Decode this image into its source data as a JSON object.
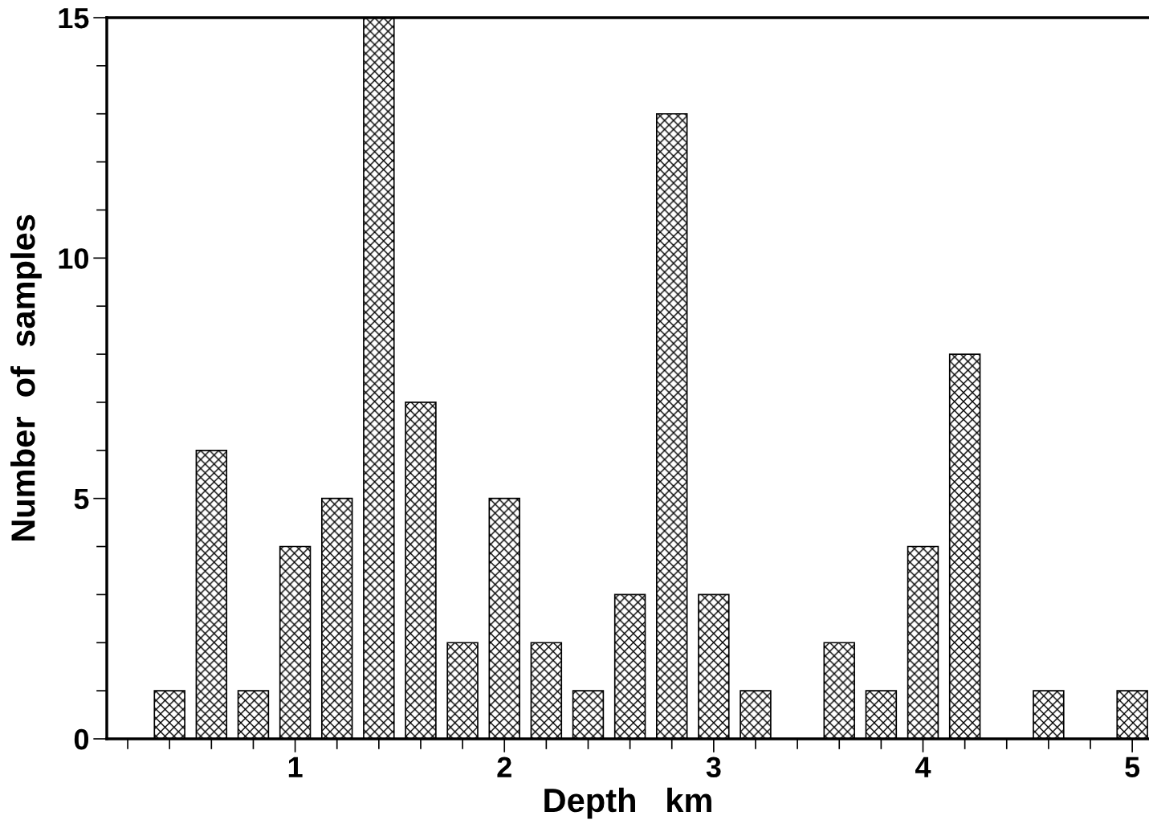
{
  "chart_data": {
    "type": "bar",
    "xlabel": "Depth   km",
    "ylabel": "Number  of  samples",
    "x": [
      0.4,
      0.6,
      0.8,
      1.0,
      1.2,
      1.4,
      1.6,
      1.8,
      2.0,
      2.2,
      2.4,
      2.6,
      2.8,
      3.0,
      3.2,
      3.6,
      3.8,
      4.0,
      4.2,
      4.6,
      5.0
    ],
    "values": [
      1,
      6,
      1,
      4,
      5,
      15,
      7,
      2,
      5,
      2,
      1,
      3,
      13,
      3,
      1,
      2,
      1,
      4,
      8,
      1,
      1
    ],
    "color": "#000000",
    "xlim": [
      0.1,
      5.08
    ],
    "xticks": [
      {
        "value": 0.2,
        "label": null
      },
      {
        "value": 0.4,
        "label": null
      },
      {
        "value": 0.6,
        "label": null
      },
      {
        "value": 0.8,
        "label": null
      },
      1,
      {
        "value": 1.2,
        "label": null
      },
      {
        "value": 1.4,
        "label": null
      },
      {
        "value": 1.6,
        "label": null
      },
      {
        "value": 1.8,
        "label": null
      },
      2,
      {
        "value": 2.2,
        "label": null
      },
      {
        "value": 2.4,
        "label": null
      },
      {
        "value": 2.6,
        "label": null
      },
      {
        "value": 2.8,
        "label": null
      },
      3,
      {
        "value": 3.2,
        "label": null
      },
      {
        "value": 3.4,
        "label": null
      },
      {
        "value": 3.6,
        "label": null
      },
      {
        "value": 3.8,
        "label": null
      },
      4,
      {
        "value": 4.2,
        "label": null
      },
      {
        "value": 4.4,
        "label": null
      },
      {
        "value": 4.6,
        "label": null
      },
      {
        "value": 4.8,
        "label": null
      },
      5
    ],
    "ylim": [
      0,
      15
    ],
    "yticks": [
      0,
      {
        "value": 1,
        "label": null
      },
      {
        "value": 2,
        "label": null
      },
      {
        "value": 3,
        "label": null
      },
      {
        "value": 4,
        "label": null
      },
      5,
      {
        "value": 6,
        "label": null
      },
      {
        "value": 7,
        "label": null
      },
      {
        "value": 8,
        "label": null
      },
      {
        "value": 9,
        "label": null
      },
      10,
      {
        "value": 11,
        "label": null
      },
      {
        "value": 12,
        "label": null
      },
      {
        "value": 13,
        "label": null
      },
      {
        "value": 14,
        "label": null
      },
      15
    ],
    "grid": false,
    "legend": false
  }
}
